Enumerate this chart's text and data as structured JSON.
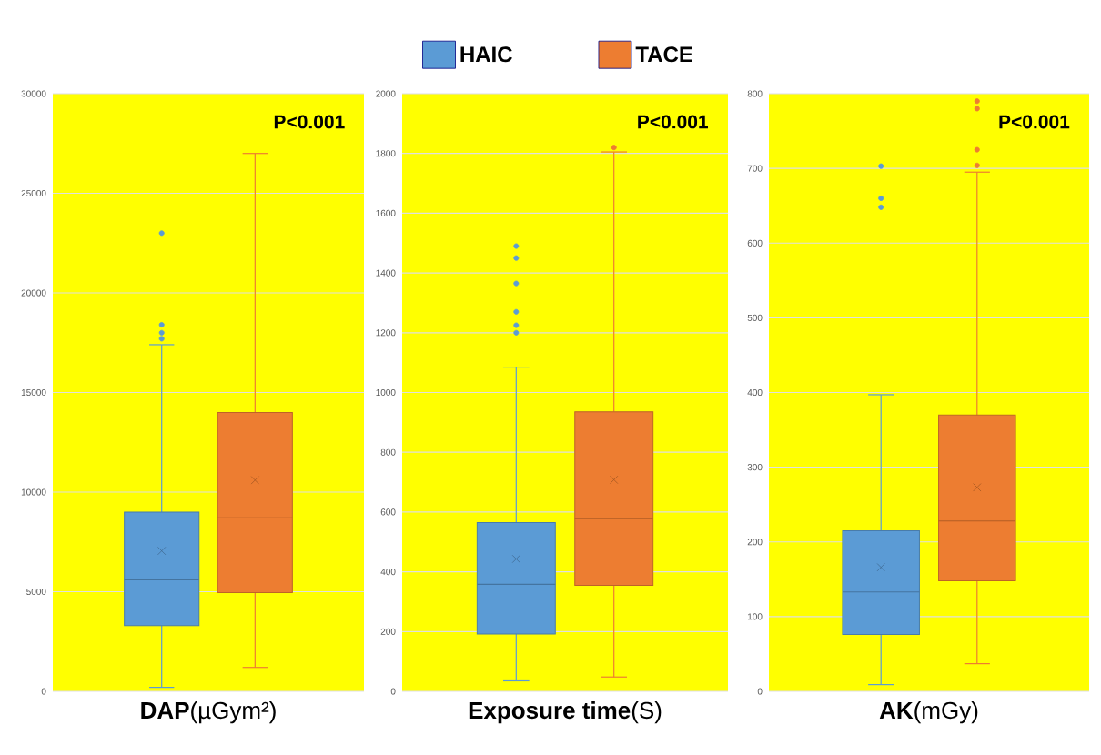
{
  "chart_data": [
    {
      "type": "box",
      "categories": [
        null
      ],
      "xlabel": "**DAP**(µGym²)",
      "ylim": [
        0,
        30000
      ],
      "yticks": [
        0,
        5000,
        10000,
        15000,
        20000,
        25000,
        30000
      ],
      "grid": "y",
      "legend": "top",
      "annotations": [
        "P<0.001"
      ],
      "series": [
        {
          "name": "HAIC",
          "color": "#5b9bd5",
          "boxes": [
            {
              "low": 200,
              "q1": 3300,
              "median": 5600,
              "q3": 9000,
              "high": 17400,
              "mean": 7050,
              "outliers": [
                17700,
                18000,
                18400,
                23000
              ]
            }
          ]
        },
        {
          "name": "TACE",
          "color": "#ed7d31",
          "boxes": [
            {
              "low": 1200,
              "q1": 4950,
              "median": 8700,
              "q3": 14000,
              "high": 27000,
              "mean": 10600
            }
          ]
        }
      ]
    },
    {
      "type": "box",
      "categories": [
        null
      ],
      "xlabel": "**Exposure time**(S)",
      "ylim": [
        0,
        2000
      ],
      "yticks": [
        0,
        200,
        400,
        600,
        800,
        1000,
        1200,
        1400,
        1600,
        1800,
        2000
      ],
      "grid": "y",
      "annotations": [
        "P<0.001"
      ],
      "series": [
        {
          "color": "#5b9bd5",
          "boxes": [
            {
              "low": 35,
              "q1": 192,
              "median": 358,
              "q3": 565,
              "high": 1085,
              "mean": 443,
              "outliers": [
                1200,
                1225,
                1270,
                1365,
                1450,
                1490
              ]
            }
          ]
        },
        {
          "color": "#ed7d31",
          "boxes": [
            {
              "low": 48,
              "q1": 355,
              "median": 578,
              "q3": 935,
              "high": 1805,
              "mean": 708,
              "outliers": [
                1820
              ]
            }
          ]
        }
      ]
    },
    {
      "type": "box",
      "categories": [
        null
      ],
      "xlabel": "**AK**(mGy)",
      "ylim": [
        0,
        800
      ],
      "yticks": [
        0,
        100,
        200,
        300,
        400,
        500,
        600,
        700,
        800
      ],
      "grid": "y",
      "annotations": [
        "P<0.001"
      ],
      "series": [
        {
          "color": "#5b9bd5",
          "boxes": [
            {
              "low": 9,
              "q1": 76,
              "median": 133,
              "q3": 215,
              "high": 397,
              "mean": 166,
              "outliers": [
                648,
                660,
                703
              ]
            }
          ]
        },
        {
          "color": "#ed7d31",
          "boxes": [
            {
              "low": 37,
              "q1": 148,
              "median": 228,
              "q3": 370,
              "high": 695,
              "mean": 273,
              "outliers": [
                704,
                725,
                780,
                790
              ]
            }
          ]
        }
      ]
    }
  ]
}
